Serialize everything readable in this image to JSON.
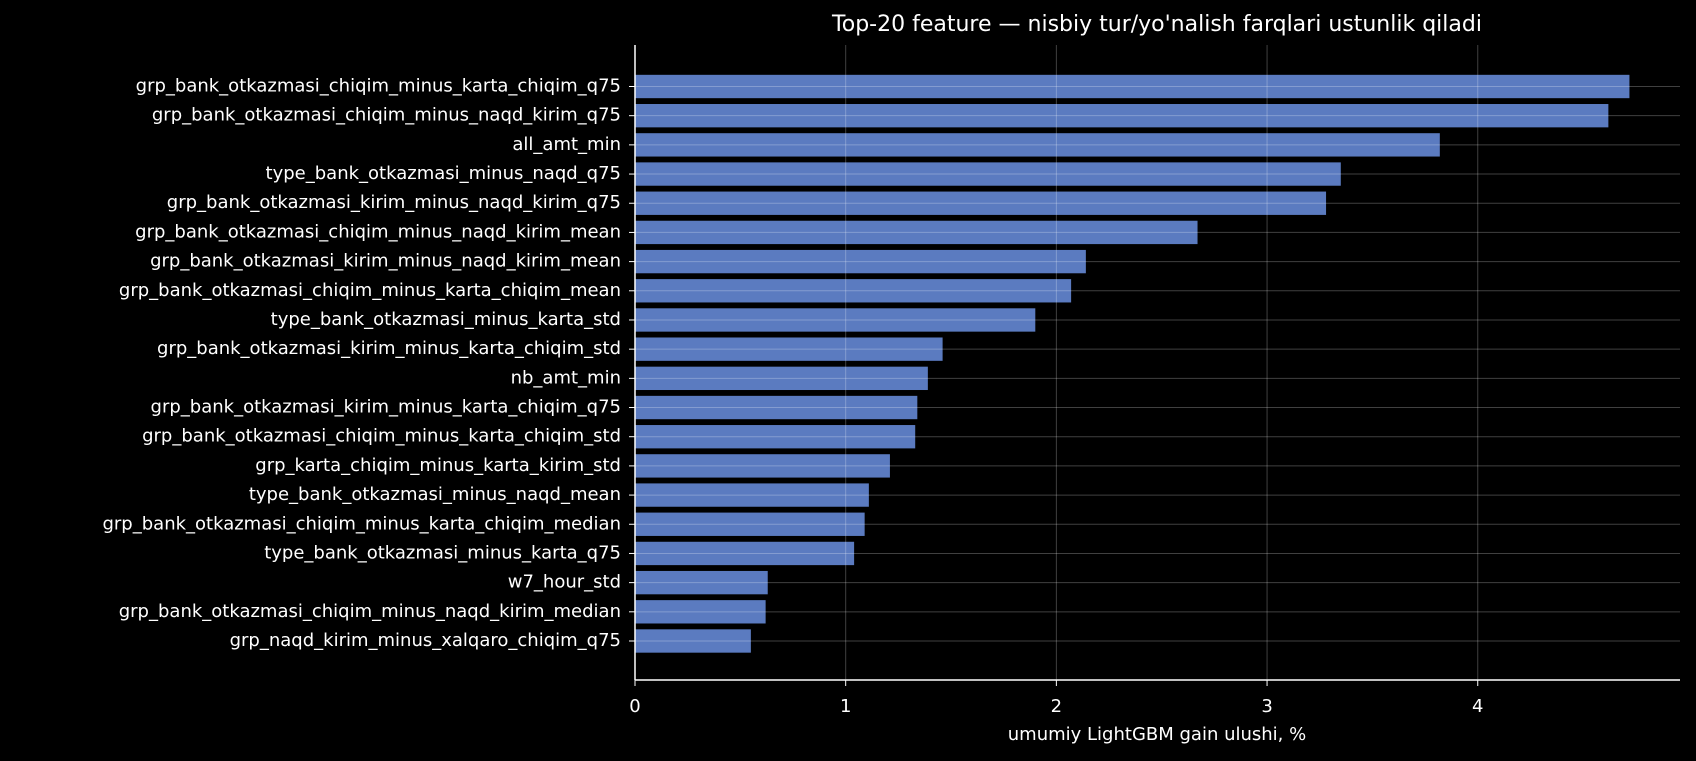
{
  "chart_data": {
    "type": "barh",
    "title": "Top-20 feature — nisbiy tur/yo'nalish farqlari ustunlik qiladi",
    "xlabel": "umumiy LightGBM gain ulushi, %",
    "categories": [
      "grp_bank_otkazmasi_chiqim_minus_karta_chiqim_q75",
      "grp_bank_otkazmasi_chiqim_minus_naqd_kirim_q75",
      "all_amt_min",
      "type_bank_otkazmasi_minus_naqd_q75",
      "grp_bank_otkazmasi_kirim_minus_naqd_kirim_q75",
      "grp_bank_otkazmasi_chiqim_minus_naqd_kirim_mean",
      "grp_bank_otkazmasi_kirim_minus_naqd_kirim_mean",
      "grp_bank_otkazmasi_chiqim_minus_karta_chiqim_mean",
      "type_bank_otkazmasi_minus_karta_std",
      "grp_bank_otkazmasi_kirim_minus_karta_chiqim_std",
      "nb_amt_min",
      "grp_bank_otkazmasi_kirim_minus_karta_chiqim_q75",
      "grp_bank_otkazmasi_chiqim_minus_karta_chiqim_std",
      "grp_karta_chiqim_minus_karta_kirim_std",
      "type_bank_otkazmasi_minus_naqd_mean",
      "grp_bank_otkazmasi_chiqim_minus_karta_chiqim_median",
      "type_bank_otkazmasi_minus_karta_q75",
      "w7_hour_std",
      "grp_bank_otkazmasi_chiqim_minus_naqd_kirim_median",
      "grp_naqd_kirim_minus_xalqaro_chiqim_q75"
    ],
    "values": [
      4.72,
      4.62,
      3.82,
      3.35,
      3.28,
      2.67,
      2.14,
      2.07,
      1.9,
      1.46,
      1.39,
      1.34,
      1.33,
      1.21,
      1.11,
      1.09,
      1.04,
      0.63,
      0.62,
      0.55
    ],
    "color": "#5b7bc0",
    "xlim": [
      0,
      4.96
    ],
    "xticks": [
      0,
      1,
      2,
      3,
      4
    ],
    "grid": true
  }
}
